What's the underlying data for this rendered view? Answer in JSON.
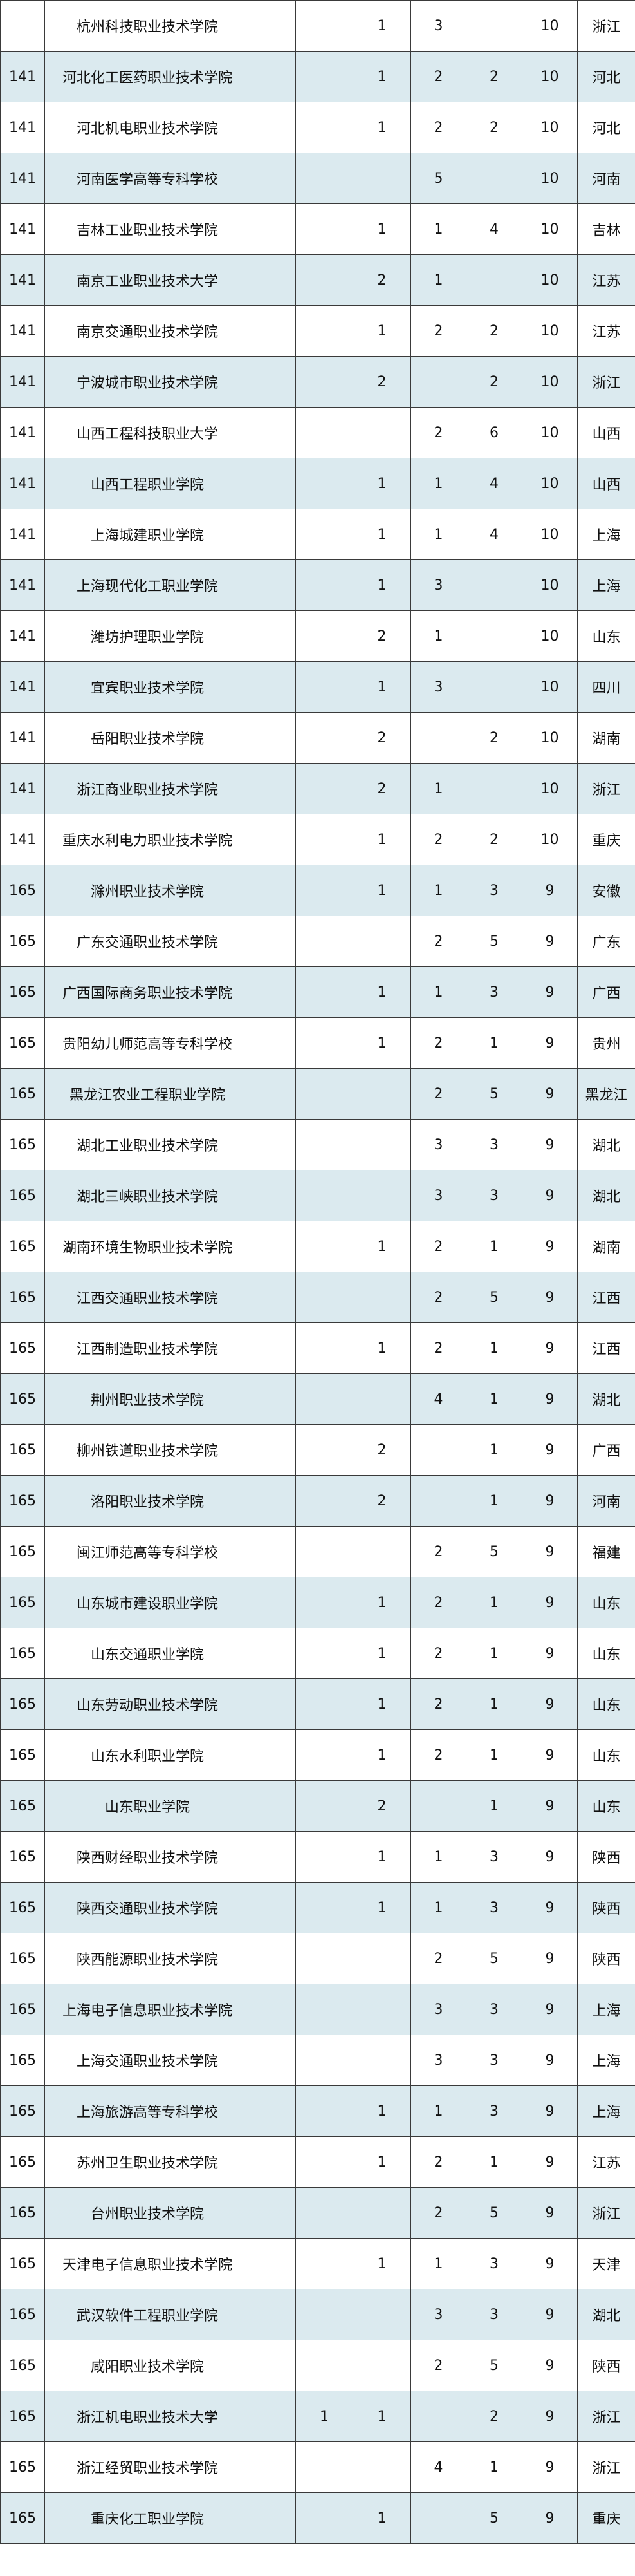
{
  "table": {
    "rows": [
      [
        null,
        "杭州科技职业技术学院",
        null,
        null,
        1,
        3,
        null,
        10,
        "浙江"
      ],
      [
        141,
        "河北化工医药职业技术学院",
        null,
        null,
        1,
        2,
        2,
        10,
        "河北"
      ],
      [
        141,
        "河北机电职业技术学院",
        null,
        null,
        1,
        2,
        2,
        10,
        "河北"
      ],
      [
        141,
        "河南医学高等专科学校",
        null,
        null,
        null,
        5,
        null,
        10,
        "河南"
      ],
      [
        141,
        "吉林工业职业技术学院",
        null,
        null,
        1,
        1,
        4,
        10,
        "吉林"
      ],
      [
        141,
        "南京工业职业技术大学",
        null,
        null,
        2,
        1,
        null,
        10,
        "江苏"
      ],
      [
        141,
        "南京交通职业技术学院",
        null,
        null,
        1,
        2,
        2,
        10,
        "江苏"
      ],
      [
        141,
        "宁波城市职业技术学院",
        null,
        null,
        2,
        null,
        2,
        10,
        "浙江"
      ],
      [
        141,
        "山西工程科技职业大学",
        null,
        null,
        null,
        2,
        6,
        10,
        "山西"
      ],
      [
        141,
        "山西工程职业学院",
        null,
        null,
        1,
        1,
        4,
        10,
        "山西"
      ],
      [
        141,
        "上海城建职业学院",
        null,
        null,
        1,
        1,
        4,
        10,
        "上海"
      ],
      [
        141,
        "上海现代化工职业学院",
        null,
        null,
        1,
        3,
        null,
        10,
        "上海"
      ],
      [
        141,
        "潍坊护理职业学院",
        null,
        null,
        2,
        1,
        null,
        10,
        "山东"
      ],
      [
        141,
        "宜宾职业技术学院",
        null,
        null,
        1,
        3,
        null,
        10,
        "四川"
      ],
      [
        141,
        "岳阳职业技术学院",
        null,
        null,
        2,
        null,
        2,
        10,
        "湖南"
      ],
      [
        141,
        "浙江商业职业技术学院",
        null,
        null,
        2,
        1,
        null,
        10,
        "浙江"
      ],
      [
        141,
        "重庆水利电力职业技术学院",
        null,
        null,
        1,
        2,
        2,
        10,
        "重庆"
      ],
      [
        165,
        "滁州职业技术学院",
        null,
        null,
        1,
        1,
        3,
        9,
        "安徽"
      ],
      [
        165,
        "广东交通职业技术学院",
        null,
        null,
        null,
        2,
        5,
        9,
        "广东"
      ],
      [
        165,
        "广西国际商务职业技术学院",
        null,
        null,
        1,
        1,
        3,
        9,
        "广西"
      ],
      [
        165,
        "贵阳幼儿师范高等专科学校",
        null,
        null,
        1,
        2,
        1,
        9,
        "贵州"
      ],
      [
        165,
        "黑龙江农业工程职业学院",
        null,
        null,
        null,
        2,
        5,
        9,
        "黑龙江"
      ],
      [
        165,
        "湖北工业职业技术学院",
        null,
        null,
        null,
        3,
        3,
        9,
        "湖北"
      ],
      [
        165,
        "湖北三峡职业技术学院",
        null,
        null,
        null,
        3,
        3,
        9,
        "湖北"
      ],
      [
        165,
        "湖南环境生物职业技术学院",
        null,
        null,
        1,
        2,
        1,
        9,
        "湖南"
      ],
      [
        165,
        "江西交通职业技术学院",
        null,
        null,
        null,
        2,
        5,
        9,
        "江西"
      ],
      [
        165,
        "江西制造职业技术学院",
        null,
        null,
        1,
        2,
        1,
        9,
        "江西"
      ],
      [
        165,
        "荆州职业技术学院",
        null,
        null,
        null,
        4,
        1,
        9,
        "湖北"
      ],
      [
        165,
        "柳州铁道职业技术学院",
        null,
        null,
        2,
        null,
        1,
        9,
        "广西"
      ],
      [
        165,
        "洛阳职业技术学院",
        null,
        null,
        2,
        null,
        1,
        9,
        "河南"
      ],
      [
        165,
        "闽江师范高等专科学校",
        null,
        null,
        null,
        2,
        5,
        9,
        "福建"
      ],
      [
        165,
        "山东城市建设职业学院",
        null,
        null,
        1,
        2,
        1,
        9,
        "山东"
      ],
      [
        165,
        "山东交通职业学院",
        null,
        null,
        1,
        2,
        1,
        9,
        "山东"
      ],
      [
        165,
        "山东劳动职业技术学院",
        null,
        null,
        1,
        2,
        1,
        9,
        "山东"
      ],
      [
        165,
        "山东水利职业学院",
        null,
        null,
        1,
        2,
        1,
        9,
        "山东"
      ],
      [
        165,
        "山东职业学院",
        null,
        null,
        2,
        null,
        1,
        9,
        "山东"
      ],
      [
        165,
        "陕西财经职业技术学院",
        null,
        null,
        1,
        1,
        3,
        9,
        "陕西"
      ],
      [
        165,
        "陕西交通职业技术学院",
        null,
        null,
        1,
        1,
        3,
        9,
        "陕西"
      ],
      [
        165,
        "陕西能源职业技术学院",
        null,
        null,
        null,
        2,
        5,
        9,
        "陕西"
      ],
      [
        165,
        "上海电子信息职业技术学院",
        null,
        null,
        null,
        3,
        3,
        9,
        "上海"
      ],
      [
        165,
        "上海交通职业技术学院",
        null,
        null,
        null,
        3,
        3,
        9,
        "上海"
      ],
      [
        165,
        "上海旅游高等专科学校",
        null,
        null,
        1,
        1,
        3,
        9,
        "上海"
      ],
      [
        165,
        "苏州卫生职业技术学院",
        null,
        null,
        1,
        2,
        1,
        9,
        "江苏"
      ],
      [
        165,
        "台州职业技术学院",
        null,
        null,
        null,
        2,
        5,
        9,
        "浙江"
      ],
      [
        165,
        "天津电子信息职业技术学院",
        null,
        null,
        1,
        1,
        3,
        9,
        "天津"
      ],
      [
        165,
        "武汉软件工程职业学院",
        null,
        null,
        null,
        3,
        3,
        9,
        "湖北"
      ],
      [
        165,
        "咸阳职业技术学院",
        null,
        null,
        null,
        2,
        5,
        9,
        "陕西"
      ],
      [
        165,
        "浙江机电职业技术大学",
        null,
        1,
        1,
        null,
        2,
        9,
        "浙江"
      ],
      [
        165,
        "浙江经贸职业技术学院",
        null,
        null,
        null,
        4,
        1,
        9,
        "浙江"
      ],
      [
        165,
        "重庆化工职业学院",
        null,
        null,
        1,
        null,
        5,
        9,
        "重庆"
      ]
    ]
  }
}
